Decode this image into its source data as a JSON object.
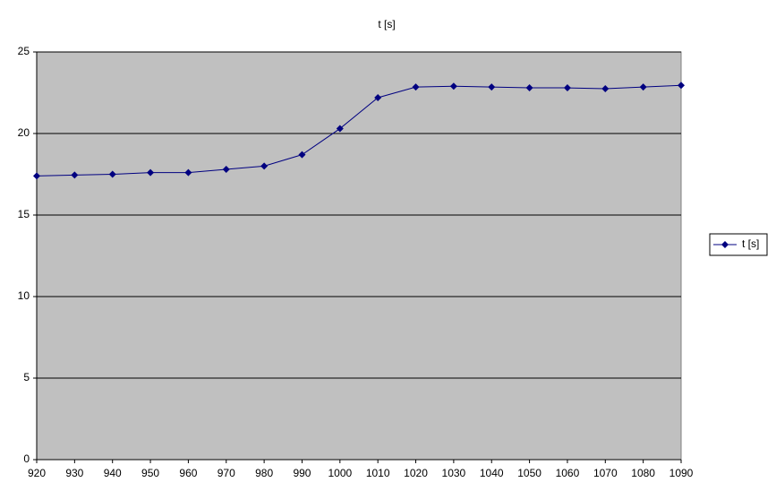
{
  "chart_data": {
    "type": "line",
    "title": "t [s]",
    "x": [
      920,
      930,
      940,
      950,
      960,
      970,
      980,
      990,
      1000,
      1010,
      1020,
      1030,
      1040,
      1050,
      1060,
      1070,
      1080,
      1090
    ],
    "series": [
      {
        "name": "t [s]",
        "color": "#000080",
        "values": [
          17.4,
          17.45,
          17.5,
          17.6,
          17.6,
          17.8,
          18.0,
          18.7,
          20.3,
          22.2,
          22.85,
          22.9,
          22.85,
          22.8,
          22.8,
          22.75,
          22.85,
          22.95
        ]
      }
    ],
    "xlim": [
      920,
      1090
    ],
    "xticks": [
      920,
      930,
      940,
      950,
      960,
      970,
      980,
      990,
      1000,
      1010,
      1020,
      1030,
      1040,
      1050,
      1060,
      1070,
      1080,
      1090
    ],
    "ylim": [
      0,
      25
    ],
    "yticks": [
      0,
      5,
      10,
      15,
      20,
      25
    ],
    "grid": true,
    "plot_background": "#c0c0c0",
    "legend": "right"
  }
}
